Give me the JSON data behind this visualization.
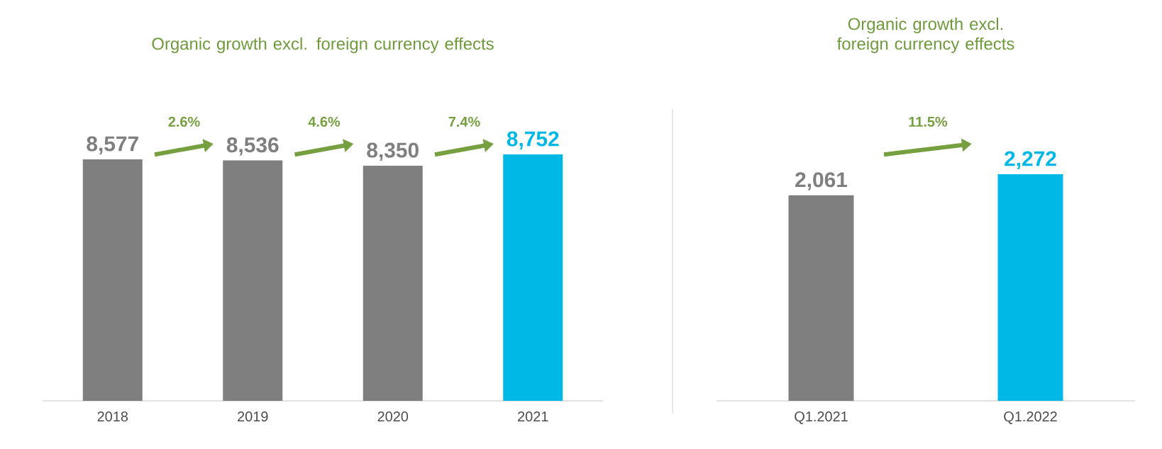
{
  "chart_data": [
    {
      "type": "bar",
      "title": "Organic growth excl. foreign currency effects",
      "categories": [
        "2018",
        "2019",
        "2020",
        "2021"
      ],
      "values": [
        8577,
        8536,
        8350,
        8752
      ],
      "colors": [
        "#7f7f7f",
        "#7f7f7f",
        "#7f7f7f",
        "#00b8e6"
      ],
      "value_labels": [
        "8,577",
        "8,536",
        "8,350",
        "8,752"
      ],
      "annotations": [
        "2.6%",
        "4.6%",
        "7.4%"
      ]
    },
    {
      "type": "bar",
      "title": "Organic growth excl. foreign currency effects",
      "categories": [
        "Q1.2021",
        "Q1.2022"
      ],
      "values": [
        2061,
        2272
      ],
      "colors": [
        "#7f7f7f",
        "#00b8e6"
      ],
      "value_labels": [
        "2,061",
        "2,272"
      ],
      "annotations": [
        "11.5%"
      ]
    }
  ]
}
